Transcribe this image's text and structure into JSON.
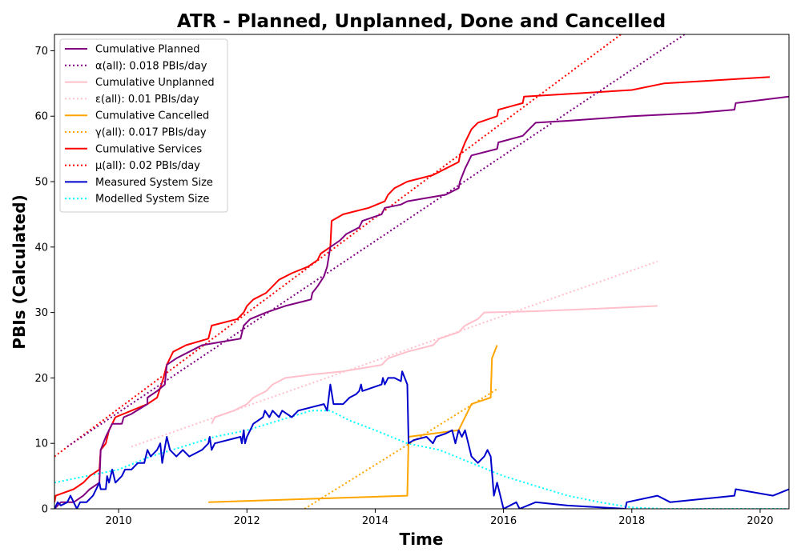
{
  "chart_data": {
    "type": "line",
    "title": "ATR - Planned, Unplanned, Done  and Cancelled",
    "xlabel": "Time",
    "ylabel": "PBIs (Calculated)",
    "xlim": [
      2009.0,
      2020.45
    ],
    "ylim": [
      0,
      72.5
    ],
    "xticks": [
      2010,
      2012,
      2014,
      2016,
      2018,
      2020
    ],
    "yticks": [
      0,
      10,
      20,
      30,
      40,
      50,
      60,
      70
    ],
    "grid": false,
    "legend_position": "top-left",
    "series": [
      {
        "name": "Cumulative Planned",
        "color": "#800080",
        "style": "solid",
        "points": [
          [
            2009.0,
            0
          ],
          [
            2009.1,
            1
          ],
          [
            2009.3,
            1
          ],
          [
            2009.45,
            2
          ],
          [
            2009.55,
            3
          ],
          [
            2009.7,
            4
          ],
          [
            2009.72,
            9
          ],
          [
            2009.8,
            11
          ],
          [
            2009.9,
            13
          ],
          [
            2010.05,
            13
          ],
          [
            2010.08,
            14
          ],
          [
            2010.2,
            14.5
          ],
          [
            2010.45,
            16
          ],
          [
            2010.45,
            17
          ],
          [
            2010.6,
            18
          ],
          [
            2010.72,
            19
          ],
          [
            2010.75,
            22
          ],
          [
            2010.9,
            23
          ],
          [
            2011.1,
            24
          ],
          [
            2011.3,
            25
          ],
          [
            2011.6,
            25.5
          ],
          [
            2011.9,
            26
          ],
          [
            2011.95,
            28
          ],
          [
            2012.05,
            29
          ],
          [
            2012.3,
            30
          ],
          [
            2012.6,
            31
          ],
          [
            2012.8,
            31.5
          ],
          [
            2013.0,
            32
          ],
          [
            2013.02,
            33
          ],
          [
            2013.1,
            34
          ],
          [
            2013.2,
            35.5
          ],
          [
            2013.25,
            37
          ],
          [
            2013.3,
            40
          ],
          [
            2013.45,
            41
          ],
          [
            2013.55,
            42
          ],
          [
            2013.75,
            43
          ],
          [
            2013.8,
            44
          ],
          [
            2014.1,
            45
          ],
          [
            2014.15,
            46
          ],
          [
            2014.4,
            46.5
          ],
          [
            2014.5,
            47
          ],
          [
            2014.8,
            47.5
          ],
          [
            2015.1,
            48
          ],
          [
            2015.3,
            49
          ],
          [
            2015.32,
            50
          ],
          [
            2015.4,
            52
          ],
          [
            2015.5,
            54
          ],
          [
            2015.9,
            55
          ],
          [
            2015.92,
            56
          ],
          [
            2016.3,
            57
          ],
          [
            2016.4,
            58
          ],
          [
            2016.5,
            59
          ],
          [
            2017.0,
            59.3
          ],
          [
            2018.0,
            60
          ],
          [
            2019.0,
            60.5
          ],
          [
            2019.6,
            61
          ],
          [
            2019.62,
            62
          ],
          [
            2020.45,
            63
          ]
        ]
      },
      {
        "name": "α(all): 0.018 PBIs/day",
        "color": "#800080",
        "style": "dotted",
        "points": [
          [
            2009.2,
            9.5
          ],
          [
            2018.9,
            73
          ]
        ]
      },
      {
        "name": "Cumulative Unplanned",
        "color": "#ffc0cb",
        "style": "solid",
        "points": [
          [
            2011.45,
            13
          ],
          [
            2011.5,
            14
          ],
          [
            2011.8,
            15
          ],
          [
            2012.0,
            16
          ],
          [
            2012.1,
            17
          ],
          [
            2012.3,
            18
          ],
          [
            2012.4,
            19
          ],
          [
            2012.6,
            20
          ],
          [
            2013.0,
            20.5
          ],
          [
            2013.5,
            21
          ],
          [
            2014.1,
            22
          ],
          [
            2014.2,
            23
          ],
          [
            2014.5,
            24
          ],
          [
            2014.9,
            25
          ],
          [
            2015.0,
            26
          ],
          [
            2015.3,
            27
          ],
          [
            2015.4,
            28
          ],
          [
            2015.6,
            29
          ],
          [
            2015.7,
            30
          ],
          [
            2016.5,
            30.2
          ],
          [
            2017.5,
            30.6
          ],
          [
            2018.4,
            31
          ]
        ]
      },
      {
        "name": "ε(all): 0.01 PBIs/day",
        "color": "#ffc0cb",
        "style": "dotted",
        "points": [
          [
            2010.2,
            9.5
          ],
          [
            2018.4,
            37.8
          ]
        ]
      },
      {
        "name": "Cumulative Cancelled",
        "color": "#ffa500",
        "style": "solid",
        "points": [
          [
            2011.4,
            1
          ],
          [
            2014.5,
            2
          ],
          [
            2014.52,
            11
          ],
          [
            2015.3,
            12
          ],
          [
            2015.5,
            16
          ],
          [
            2015.8,
            17
          ],
          [
            2015.82,
            23
          ],
          [
            2015.9,
            25
          ]
        ]
      },
      {
        "name": "γ(all): 0.017 PBIs/day",
        "color": "#ffa500",
        "style": "dotted",
        "points": [
          [
            2012.9,
            0
          ],
          [
            2015.9,
            18.3
          ]
        ]
      },
      {
        "name": "Cumulative Services",
        "color": "#ff0000",
        "style": "solid",
        "points": [
          [
            2009.0,
            1
          ],
          [
            2009.02,
            2
          ],
          [
            2009.3,
            3
          ],
          [
            2009.45,
            4
          ],
          [
            2009.55,
            5
          ],
          [
            2009.7,
            6
          ],
          [
            2009.72,
            9
          ],
          [
            2009.8,
            10
          ],
          [
            2009.85,
            12
          ],
          [
            2009.9,
            13
          ],
          [
            2009.95,
            14
          ],
          [
            2010.2,
            15
          ],
          [
            2010.45,
            16
          ],
          [
            2010.6,
            17
          ],
          [
            2010.7,
            20
          ],
          [
            2010.75,
            22
          ],
          [
            2010.85,
            24
          ],
          [
            2011.05,
            25
          ],
          [
            2011.4,
            26
          ],
          [
            2011.45,
            28
          ],
          [
            2011.85,
            29
          ],
          [
            2011.95,
            30
          ],
          [
            2012.0,
            31
          ],
          [
            2012.1,
            32
          ],
          [
            2012.3,
            33
          ],
          [
            2012.4,
            34
          ],
          [
            2012.5,
            35
          ],
          [
            2012.7,
            36
          ],
          [
            2012.95,
            37
          ],
          [
            2013.1,
            38
          ],
          [
            2013.15,
            39
          ],
          [
            2013.3,
            40
          ],
          [
            2013.32,
            44
          ],
          [
            2013.5,
            45
          ],
          [
            2013.9,
            46
          ],
          [
            2014.15,
            47
          ],
          [
            2014.2,
            48
          ],
          [
            2014.3,
            49
          ],
          [
            2014.5,
            50
          ],
          [
            2014.9,
            51
          ],
          [
            2015.1,
            52
          ],
          [
            2015.3,
            53
          ],
          [
            2015.32,
            54
          ],
          [
            2015.4,
            56
          ],
          [
            2015.5,
            58
          ],
          [
            2015.6,
            59
          ],
          [
            2015.9,
            60
          ],
          [
            2015.92,
            61
          ],
          [
            2016.3,
            62
          ],
          [
            2016.32,
            63
          ],
          [
            2016.5,
            63.1
          ],
          [
            2017.5,
            63.7
          ],
          [
            2018.0,
            64
          ],
          [
            2018.5,
            65
          ],
          [
            2019.0,
            65.3
          ],
          [
            2020.15,
            66
          ]
        ]
      },
      {
        "name": "μ(all): 0.02 PBIs/day",
        "color": "#ff0000",
        "style": "dotted",
        "points": [
          [
            2009.0,
            8
          ],
          [
            2017.9,
            73
          ]
        ]
      },
      {
        "name": "Measured System Size",
        "color": "#0000cd",
        "style": "solid",
        "points": [
          [
            2009.0,
            0
          ],
          [
            2009.05,
            1
          ],
          [
            2009.1,
            0.5
          ],
          [
            2009.2,
            1
          ],
          [
            2009.25,
            2
          ],
          [
            2009.3,
            1
          ],
          [
            2009.35,
            0
          ],
          [
            2009.4,
            1
          ],
          [
            2009.5,
            1
          ],
          [
            2009.6,
            2
          ],
          [
            2009.7,
            4
          ],
          [
            2009.72,
            3
          ],
          [
            2009.8,
            3
          ],
          [
            2009.82,
            5
          ],
          [
            2009.85,
            4
          ],
          [
            2009.9,
            6
          ],
          [
            2009.95,
            4
          ],
          [
            2010.05,
            5
          ],
          [
            2010.1,
            6
          ],
          [
            2010.2,
            6
          ],
          [
            2010.3,
            7
          ],
          [
            2010.4,
            7
          ],
          [
            2010.45,
            9
          ],
          [
            2010.5,
            8
          ],
          [
            2010.6,
            9
          ],
          [
            2010.65,
            10
          ],
          [
            2010.68,
            7
          ],
          [
            2010.75,
            11
          ],
          [
            2010.8,
            9
          ],
          [
            2010.9,
            8
          ],
          [
            2011.0,
            9
          ],
          [
            2011.1,
            8
          ],
          [
            2011.3,
            9
          ],
          [
            2011.4,
            10
          ],
          [
            2011.42,
            11
          ],
          [
            2011.45,
            9
          ],
          [
            2011.5,
            10
          ],
          [
            2011.9,
            11
          ],
          [
            2011.92,
            10
          ],
          [
            2011.95,
            12
          ],
          [
            2011.97,
            10
          ],
          [
            2012.0,
            11
          ],
          [
            2012.1,
            13
          ],
          [
            2012.25,
            14
          ],
          [
            2012.28,
            15
          ],
          [
            2012.35,
            14
          ],
          [
            2012.4,
            15
          ],
          [
            2012.5,
            14
          ],
          [
            2012.55,
            15
          ],
          [
            2012.7,
            14
          ],
          [
            2012.8,
            15
          ],
          [
            2013.0,
            15.5
          ],
          [
            2013.2,
            16
          ],
          [
            2013.25,
            15
          ],
          [
            2013.3,
            19
          ],
          [
            2013.35,
            16
          ],
          [
            2013.5,
            16
          ],
          [
            2013.6,
            17
          ],
          [
            2013.7,
            17.5
          ],
          [
            2013.75,
            18
          ],
          [
            2013.78,
            19
          ],
          [
            2013.8,
            18
          ],
          [
            2014.1,
            19
          ],
          [
            2014.12,
            20
          ],
          [
            2014.15,
            19
          ],
          [
            2014.2,
            20
          ],
          [
            2014.3,
            20
          ],
          [
            2014.4,
            19.5
          ],
          [
            2014.42,
            21
          ],
          [
            2014.5,
            19
          ],
          [
            2014.52,
            10
          ],
          [
            2014.6,
            10.5
          ],
          [
            2014.8,
            11
          ],
          [
            2014.9,
            10
          ],
          [
            2014.95,
            11
          ],
          [
            2015.1,
            11.5
          ],
          [
            2015.2,
            12
          ],
          [
            2015.25,
            10
          ],
          [
            2015.3,
            12
          ],
          [
            2015.35,
            11
          ],
          [
            2015.4,
            12
          ],
          [
            2015.45,
            10
          ],
          [
            2015.5,
            8
          ],
          [
            2015.6,
            7
          ],
          [
            2015.7,
            8
          ],
          [
            2015.75,
            9
          ],
          [
            2015.8,
            8
          ],
          [
            2015.85,
            2
          ],
          [
            2015.9,
            4
          ],
          [
            2015.95,
            2
          ],
          [
            2016.0,
            0
          ],
          [
            2016.2,
            1
          ],
          [
            2016.25,
            0
          ],
          [
            2016.5,
            1
          ],
          [
            2017.0,
            0.5
          ],
          [
            2017.9,
            0
          ],
          [
            2017.92,
            1
          ],
          [
            2018.4,
            2
          ],
          [
            2018.6,
            1
          ],
          [
            2019.6,
            2
          ],
          [
            2019.62,
            3
          ],
          [
            2020.2,
            2
          ],
          [
            2020.45,
            3
          ]
        ]
      },
      {
        "name": "Modelled System Size",
        "color": "#00ffff",
        "style": "dotted",
        "points": [
          [
            2009.0,
            4
          ],
          [
            2009.5,
            5
          ],
          [
            2010.0,
            6
          ],
          [
            2010.5,
            8
          ],
          [
            2011.0,
            9.5
          ],
          [
            2011.5,
            11
          ],
          [
            2012.0,
            12
          ],
          [
            2012.5,
            13.5
          ],
          [
            2013.0,
            15
          ],
          [
            2013.3,
            15
          ],
          [
            2013.6,
            13.5
          ],
          [
            2014.0,
            12
          ],
          [
            2014.5,
            10
          ],
          [
            2015.0,
            9
          ],
          [
            2015.5,
            7
          ],
          [
            2016.0,
            5
          ],
          [
            2016.5,
            3.5
          ],
          [
            2017.0,
            2
          ],
          [
            2017.5,
            1
          ],
          [
            2018.0,
            0.2
          ],
          [
            2018.5,
            0
          ],
          [
            2020.45,
            0
          ]
        ]
      }
    ]
  }
}
